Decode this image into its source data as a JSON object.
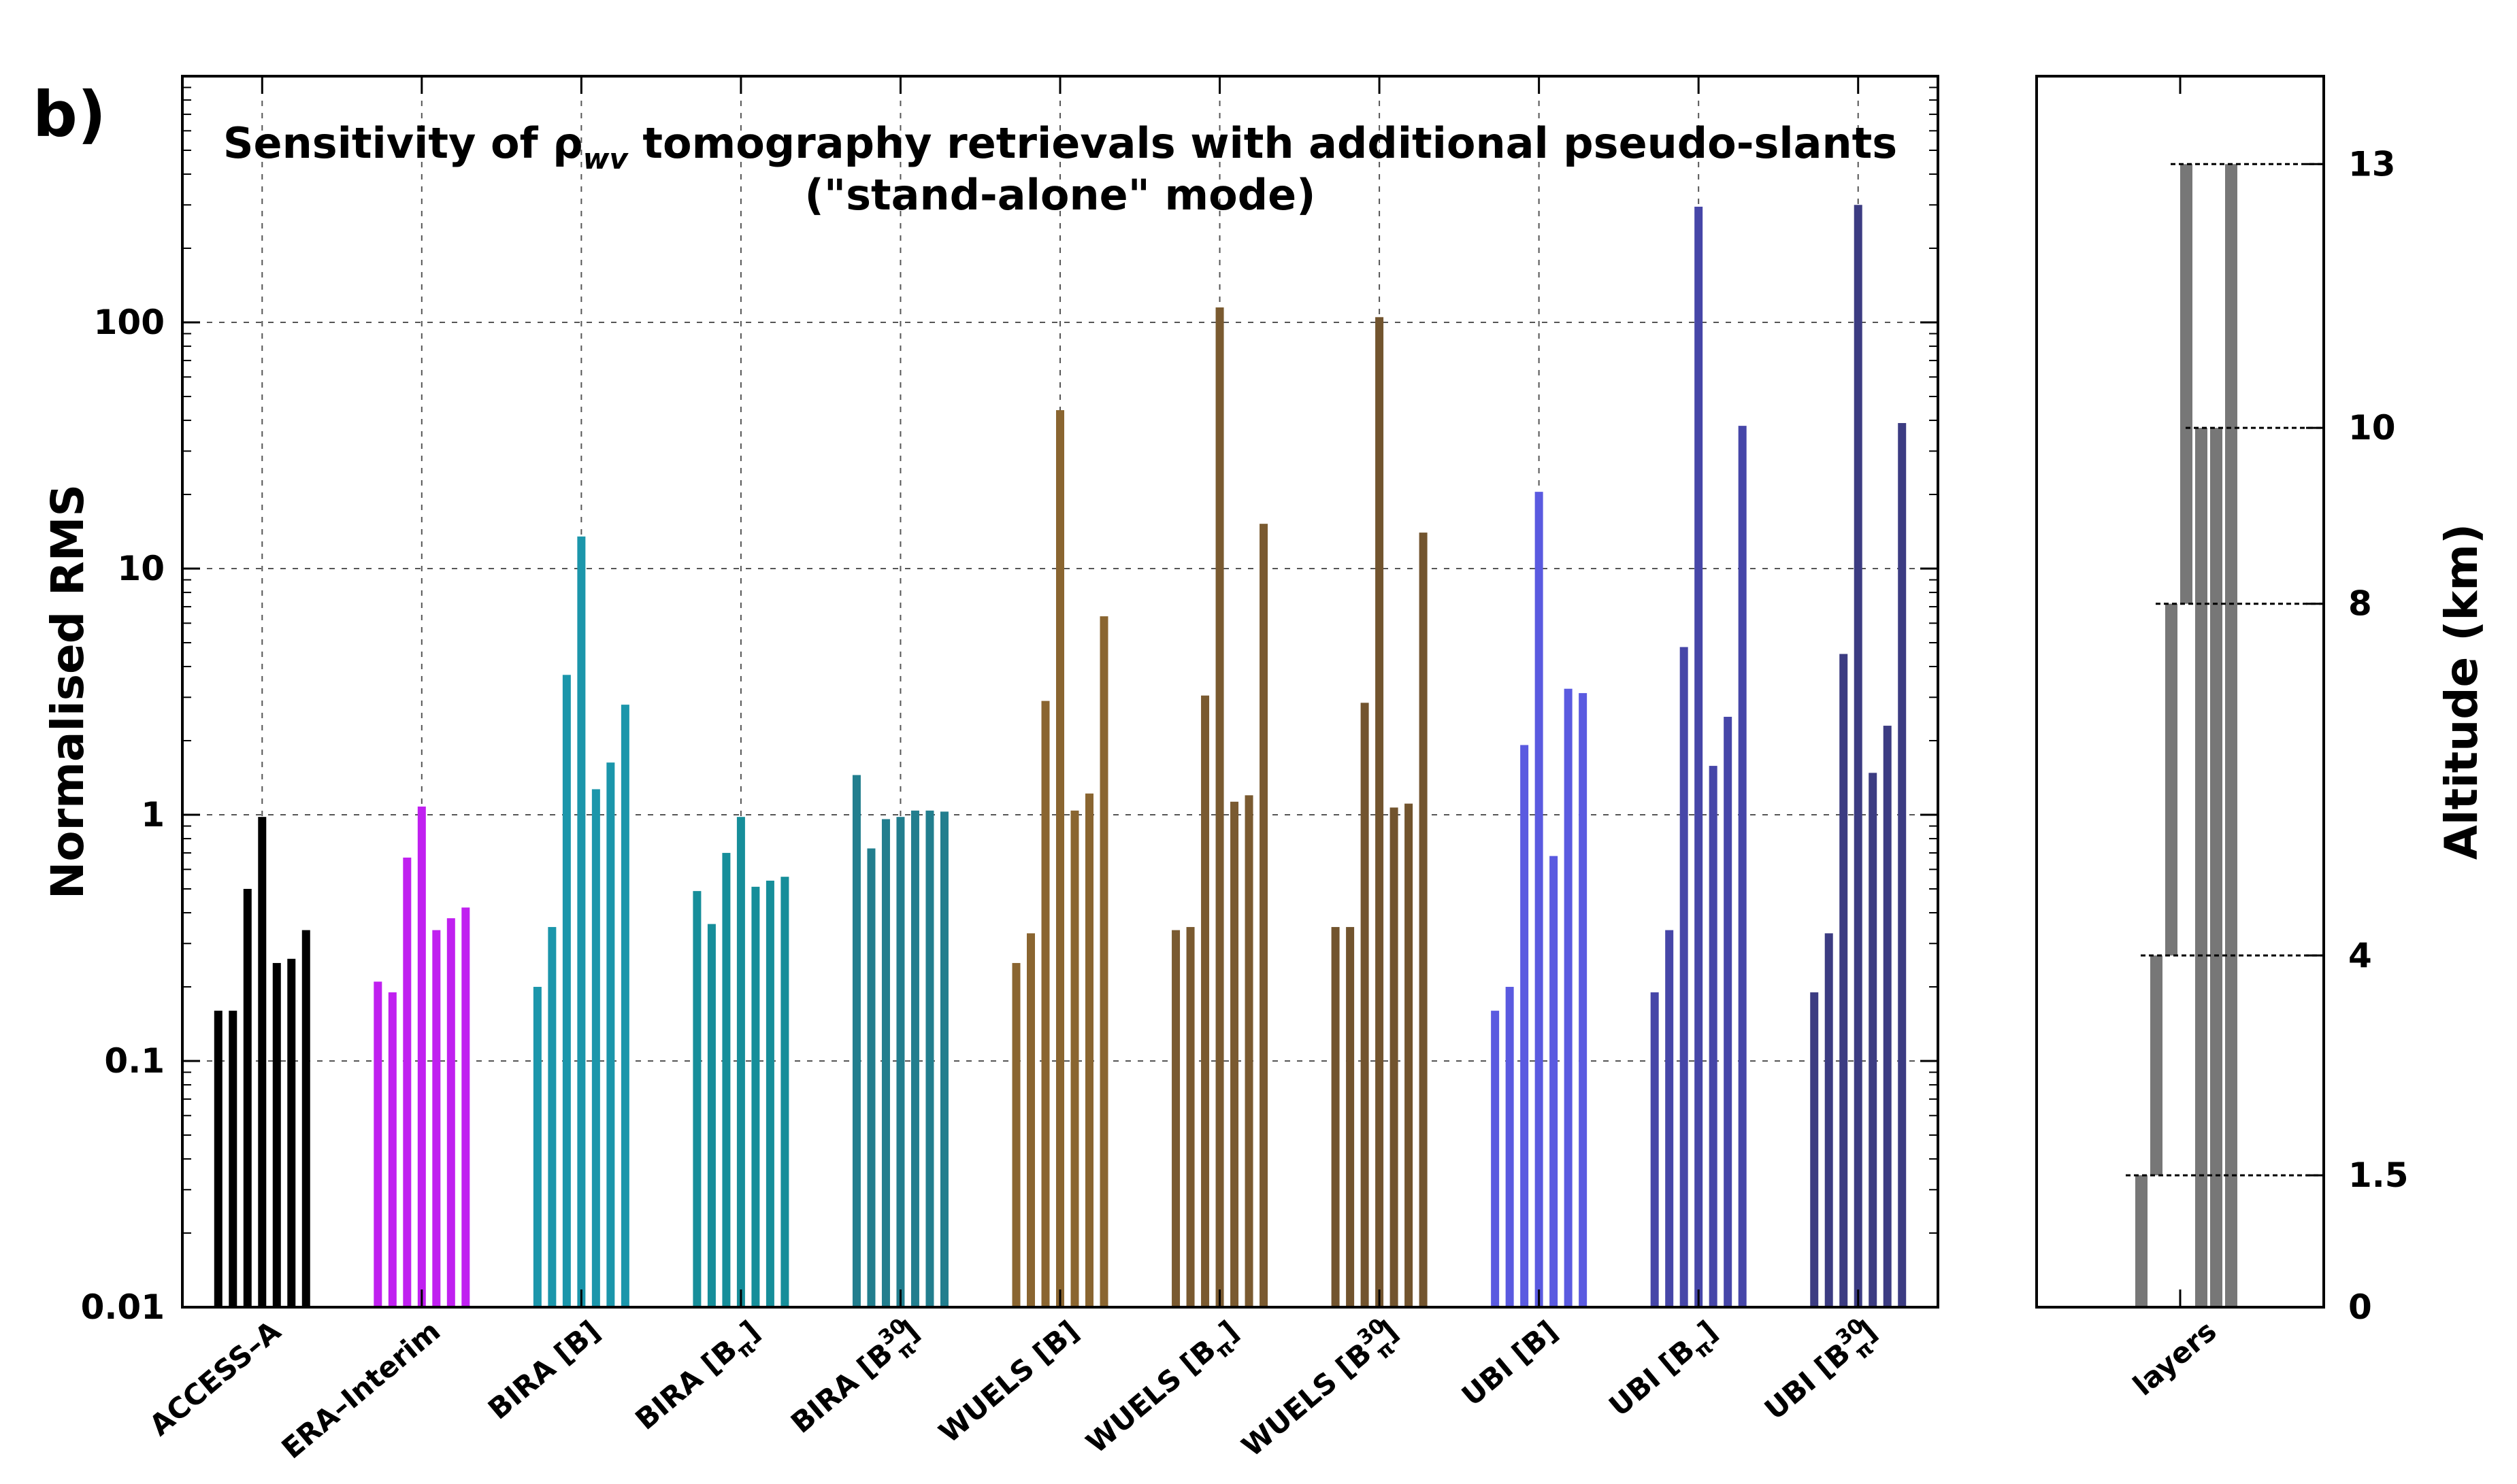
{
  "panel_label": "b)",
  "chart_data": [
    {
      "type": "bar",
      "title_line1_prefix": "Sensitivity of ρ",
      "title_line1_sub": "wv",
      "title_line1_suffix": " tomography retrievals with additional pseudo-slants",
      "title_line2": "(\"stand-alone\" mode)",
      "ylabel": "Normalised RMS",
      "xlabel": "",
      "yscale": "log",
      "ylim": [
        0.01,
        1000
      ],
      "yticks": [
        0.01,
        0.1,
        1,
        10,
        100
      ],
      "ytick_labels": [
        "0.01",
        "0.1",
        "1",
        "10",
        "100"
      ],
      "grid": true,
      "groups": [
        {
          "label": "ACCESS–A",
          "color": "#000000",
          "values": [
            0.16,
            0.16,
            0.5,
            0.98,
            0.25,
            0.26,
            0.34
          ]
        },
        {
          "label": "ERA–Interim",
          "color": "#c020f0",
          "values": [
            0.21,
            0.19,
            0.67,
            1.08,
            0.34,
            0.38,
            0.42
          ]
        },
        {
          "label": "BIRA [B]",
          "color": "#1b96ab",
          "values": [
            0.2,
            0.35,
            3.7,
            13.5,
            1.27,
            1.63,
            2.8
          ]
        },
        {
          "label": "BIRA [B",
          "label_sub": "π",
          "label_close": "]",
          "color": "#168e9a",
          "values": [
            0.49,
            0.36,
            0.7,
            0.98,
            0.51,
            0.54,
            0.56
          ]
        },
        {
          "label": "BIRA [B",
          "label_sub": "π",
          "label_sup": "30",
          "label_close": "]",
          "color": "#227e8e",
          "values": [
            1.45,
            0.73,
            0.96,
            0.98,
            1.04,
            1.04,
            1.03
          ]
        },
        {
          "label": "WUELS [B]",
          "color": "#8a6530",
          "values": [
            0.25,
            0.33,
            2.9,
            44,
            1.04,
            1.22,
            6.4
          ]
        },
        {
          "label": "WUELS [B",
          "label_sub": "π",
          "label_close": "]",
          "color": "#7a5a30",
          "values": [
            0.34,
            0.35,
            3.05,
            115,
            1.13,
            1.2,
            15.2
          ]
        },
        {
          "label": "WUELS [B",
          "label_sub": "π",
          "label_sup": "30",
          "label_close": "]",
          "color": "#72542e",
          "values": [
            0.35,
            0.35,
            2.85,
            105,
            1.07,
            1.11,
            14
          ]
        },
        {
          "label": "UBI [B]",
          "color": "#5a5ae0",
          "values": [
            0.16,
            0.2,
            1.92,
            20.5,
            0.68,
            3.25,
            3.12
          ]
        },
        {
          "label": "UBI [B",
          "label_sub": "π",
          "label_close": "]",
          "color": "#4646a8",
          "values": [
            0.19,
            0.34,
            4.8,
            295,
            1.58,
            2.5,
            38
          ]
        },
        {
          "label": "UBI [B",
          "label_sub": "π",
          "label_sup": "30",
          "label_close": "]",
          "color": "#3c3c82",
          "values": [
            0.19,
            0.33,
            4.5,
            300,
            1.48,
            2.3,
            39
          ]
        }
      ]
    },
    {
      "type": "bar",
      "ylabel": "Altitude (km)",
      "xlabel": "",
      "category": "layers",
      "ylim": [
        0,
        14
      ],
      "yticks": [
        0,
        1.5,
        4,
        8,
        10,
        13
      ],
      "ytick_labels": [
        "0",
        "1.5",
        "4",
        "8",
        "10",
        "13"
      ],
      "layer_boundaries": [
        1.5,
        4,
        8,
        10,
        13
      ],
      "bar_color": "#777777",
      "layers": [
        {
          "bottom": 0,
          "top": 1.5
        },
        {
          "bottom": 1.5,
          "top": 4
        },
        {
          "bottom": 4,
          "top": 8
        },
        {
          "bottom": 8,
          "top": 13
        },
        {
          "bottom": 0,
          "top": 10
        },
        {
          "bottom": 0,
          "top": 10
        },
        {
          "bottom": 0,
          "top": 13
        }
      ]
    }
  ]
}
